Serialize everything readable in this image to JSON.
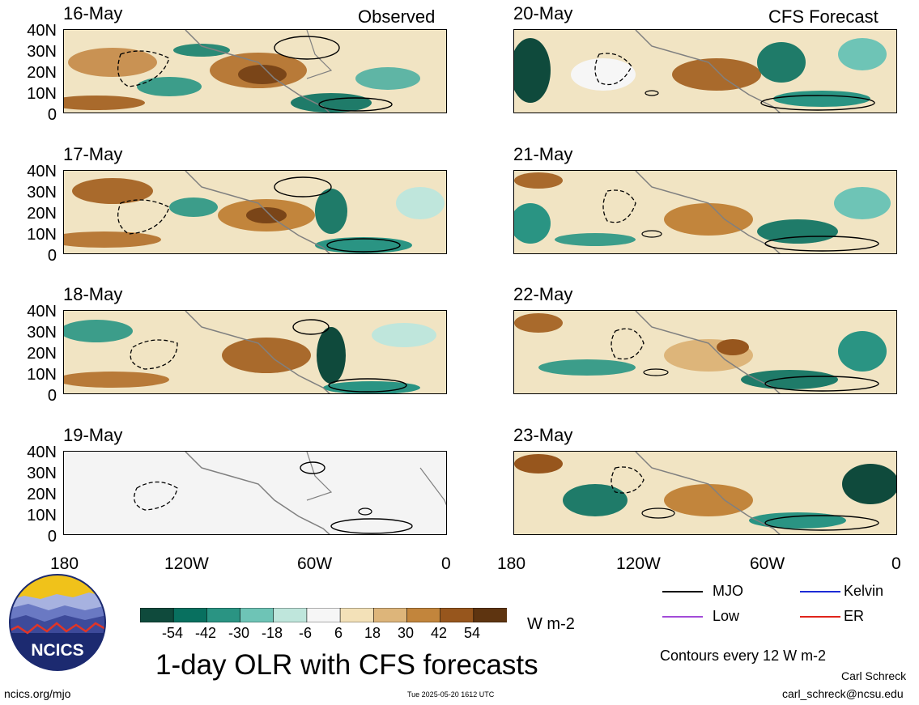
{
  "headers": {
    "left": "Observed",
    "right": "CFS Forecast"
  },
  "panels": {
    "left": [
      "16-May",
      "17-May",
      "18-May",
      "19-May"
    ],
    "right": [
      "20-May",
      "21-May",
      "22-May",
      "23-May"
    ]
  },
  "lat_labels": [
    "40N",
    "30N",
    "20N",
    "10N",
    "0"
  ],
  "lon_labels": [
    "180",
    "120W",
    "60W",
    "0"
  ],
  "colorbar": {
    "ticks": [
      "-54",
      "-42",
      "-30",
      "-18",
      "-6",
      "6",
      "18",
      "30",
      "42",
      "54"
    ],
    "unit": "W m-2",
    "colors": [
      "#0f4a3c",
      "#08705f",
      "#2a9483",
      "#6ec4b6",
      "#bfe6dc",
      "#f6f6f6",
      "#f3e1b8",
      "#ddb57a",
      "#c2853c",
      "#97561d",
      "#5e3410"
    ]
  },
  "legend": {
    "items": [
      {
        "label": "MJO",
        "color": "#000000"
      },
      {
        "label": "Kelvin",
        "color": "#1d2bd6"
      },
      {
        "label": "Low",
        "color": "#a24bd8"
      },
      {
        "label": "ER",
        "color": "#e0241b"
      }
    ],
    "contour_note": "Contours every 12 W m-2"
  },
  "title": "1-day OLR with CFS forecasts",
  "logo_text": "NCICS",
  "footer": {
    "url": "ncics.org/mjo",
    "timestamp": "Tue 2025-05-20 1612 UTC",
    "author": "Carl Schreck",
    "email": "carl_schreck@ncsu.edu"
  }
}
